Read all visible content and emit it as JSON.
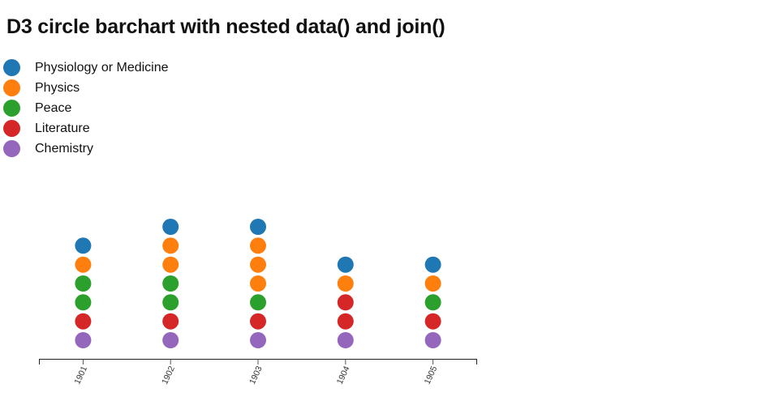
{
  "title": "D3 circle barchart with nested data() and join()",
  "legend": {
    "items": [
      {
        "label": "Physiology or Medicine",
        "color": "#1f77b4"
      },
      {
        "label": "Physics",
        "color": "#ff7f0e"
      },
      {
        "label": "Peace",
        "color": "#2ca02c"
      },
      {
        "label": "Literature",
        "color": "#d62728"
      },
      {
        "label": "Chemistry",
        "color": "#9467bd"
      }
    ]
  },
  "chart_data": {
    "type": "scatter",
    "variant": "stacked-circle-barchart",
    "title": "D3 circle barchart with nested data() and join()",
    "x": [
      "1901",
      "1902",
      "1903",
      "1904",
      "1905"
    ],
    "categories": [
      "Physiology or Medicine",
      "Physics",
      "Peace",
      "Literature",
      "Chemistry"
    ],
    "series": [
      {
        "name": "Physiology or Medicine",
        "color": "#1f77b4",
        "values": [
          1,
          1,
          1,
          1,
          1
        ]
      },
      {
        "name": "Physics",
        "color": "#ff7f0e",
        "values": [
          1,
          2,
          3,
          1,
          1
        ]
      },
      {
        "name": "Peace",
        "color": "#2ca02c",
        "values": [
          2,
          2,
          1,
          0,
          1
        ]
      },
      {
        "name": "Literature",
        "color": "#d62728",
        "values": [
          1,
          1,
          1,
          2,
          1
        ]
      },
      {
        "name": "Chemistry",
        "color": "#9467bd",
        "values": [
          1,
          1,
          1,
          1,
          1
        ]
      }
    ],
    "stack_order_bottom_to_top": [
      "Chemistry",
      "Literature",
      "Peace",
      "Physics",
      "Physiology or Medicine"
    ],
    "totals": [
      6,
      7,
      7,
      5,
      5
    ],
    "x_tick_labels": [
      "1901",
      "1902",
      "1903",
      "1904",
      "1905"
    ],
    "x_tick_label_rotation_deg": -65,
    "grid": false,
    "legend_position": "top-left"
  }
}
